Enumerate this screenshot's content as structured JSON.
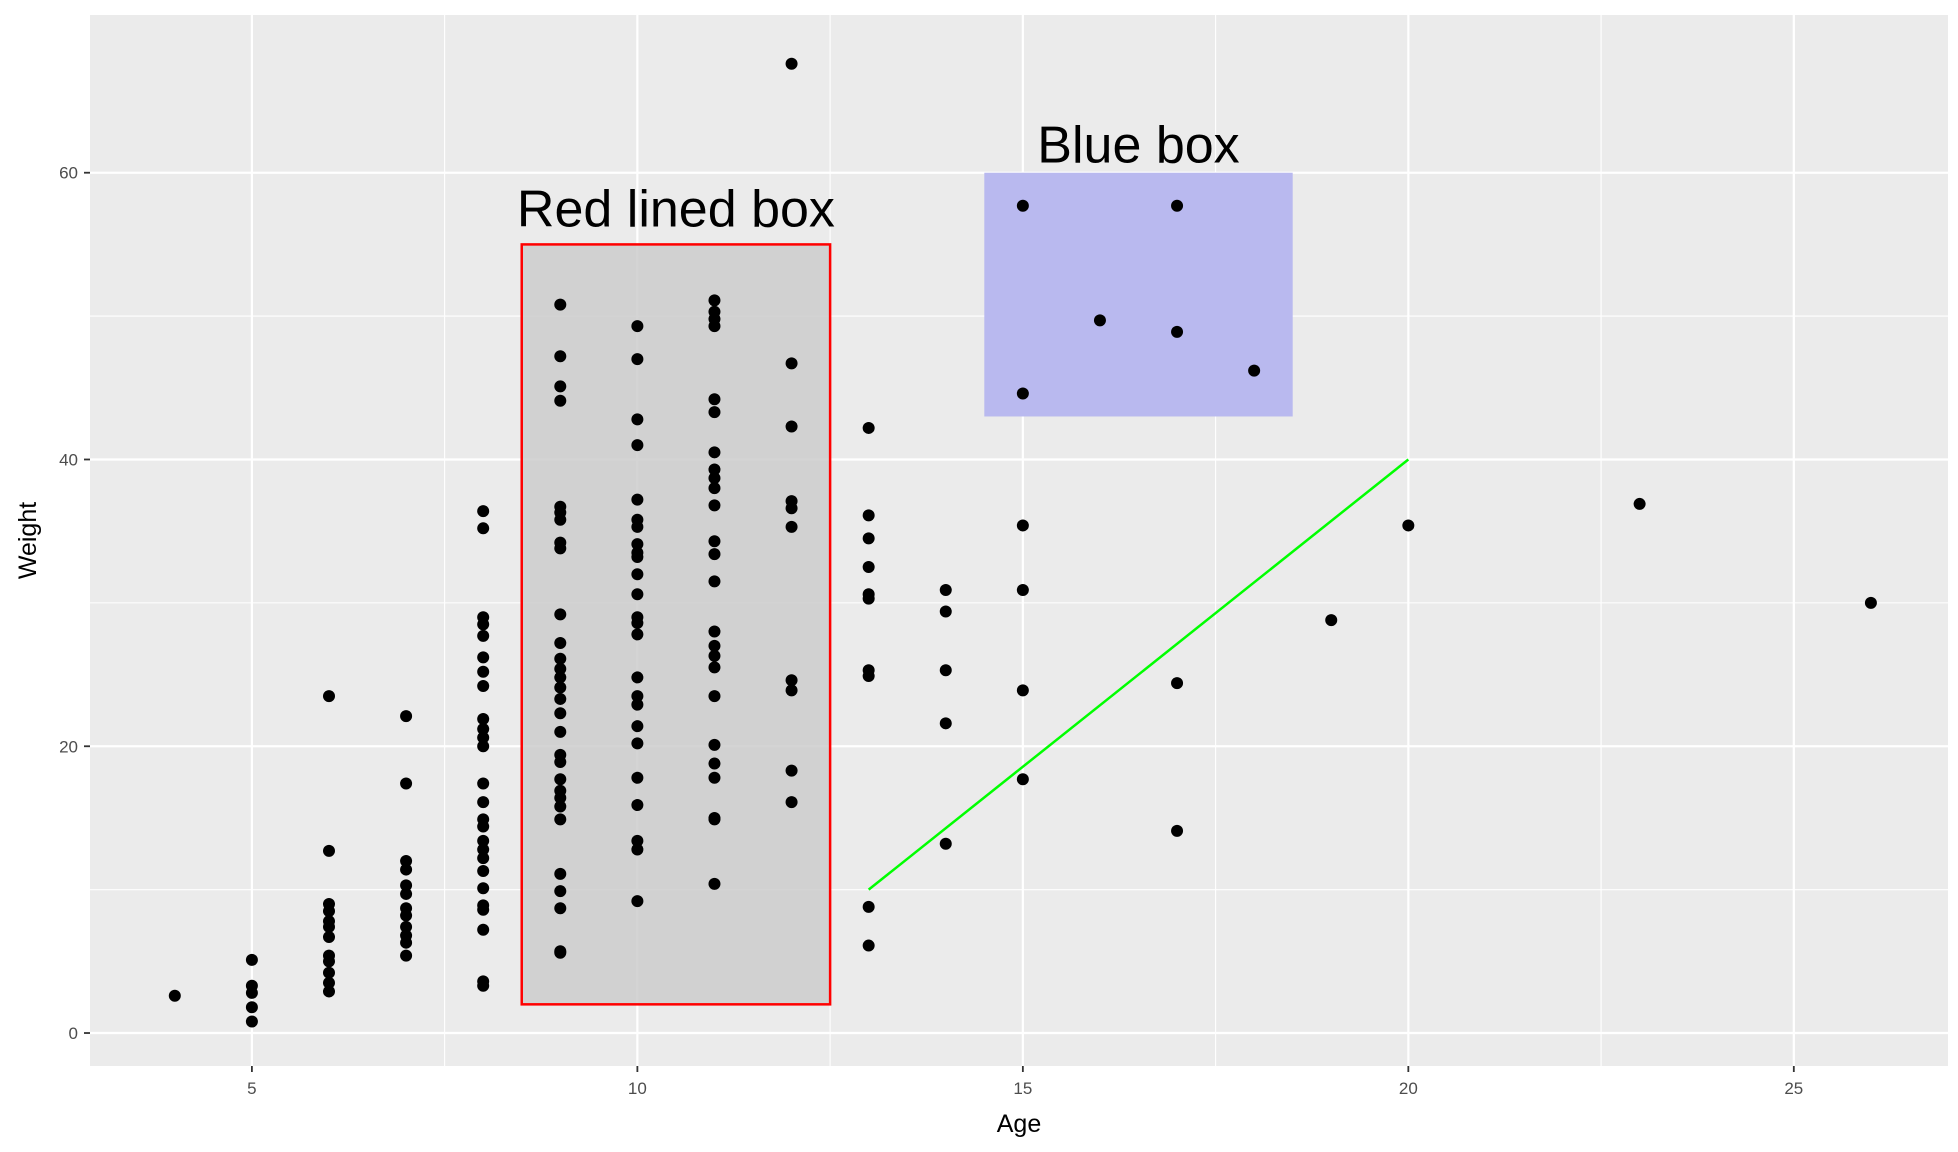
{
  "chart_data": {
    "type": "scatter",
    "title": "",
    "xlabel": "Age",
    "ylabel": "Weight",
    "xlim": [
      2.9,
      27.0
    ],
    "ylim": [
      -2.3,
      71.0
    ],
    "x_ticks": [
      5,
      10,
      15,
      20,
      25
    ],
    "y_ticks": [
      0,
      20,
      40,
      60
    ],
    "grid": true,
    "legend": "none",
    "colors": {
      "panel": "#ebebeb",
      "grid": "#ffffff",
      "points": "#000000",
      "red_box_fill": "#cccccc",
      "red_box_border": "#ff0000",
      "blue_box_fill": "#b9b9ef",
      "line": "#00ff00"
    },
    "points": [
      [
        4,
        2.6
      ],
      [
        5,
        0.8
      ],
      [
        5,
        1.8
      ],
      [
        5,
        2.8
      ],
      [
        5,
        3.3
      ],
      [
        5,
        5.1
      ],
      [
        6,
        2.9
      ],
      [
        6,
        3.5
      ],
      [
        6,
        4.2
      ],
      [
        6,
        5.0
      ],
      [
        6,
        5.4
      ],
      [
        6,
        6.7
      ],
      [
        6,
        7.4
      ],
      [
        6,
        7.8
      ],
      [
        6,
        8.5
      ],
      [
        6,
        9.0
      ],
      [
        6,
        12.7
      ],
      [
        6,
        23.5
      ],
      [
        7,
        5.4
      ],
      [
        7,
        6.3
      ],
      [
        7,
        6.8
      ],
      [
        7,
        7.4
      ],
      [
        7,
        8.2
      ],
      [
        7,
        8.7
      ],
      [
        7,
        9.7
      ],
      [
        7,
        10.3
      ],
      [
        7,
        11.4
      ],
      [
        7,
        12.0
      ],
      [
        7,
        17.4
      ],
      [
        7,
        22.1
      ],
      [
        8,
        3.3
      ],
      [
        8,
        3.6
      ],
      [
        8,
        7.2
      ],
      [
        8,
        8.6
      ],
      [
        8,
        8.9
      ],
      [
        8,
        10.1
      ],
      [
        8,
        11.3
      ],
      [
        8,
        12.2
      ],
      [
        8,
        12.8
      ],
      [
        8,
        13.4
      ],
      [
        8,
        14.4
      ],
      [
        8,
        14.9
      ],
      [
        8,
        16.1
      ],
      [
        8,
        17.4
      ],
      [
        8,
        20.0
      ],
      [
        8,
        20.6
      ],
      [
        8,
        21.2
      ],
      [
        8,
        21.9
      ],
      [
        8,
        24.2
      ],
      [
        8,
        25.2
      ],
      [
        8,
        26.2
      ],
      [
        8,
        27.7
      ],
      [
        8,
        28.5
      ],
      [
        8,
        29.0
      ],
      [
        8,
        35.2
      ],
      [
        8,
        36.4
      ],
      [
        9,
        5.6
      ],
      [
        9,
        5.7
      ],
      [
        9,
        8.7
      ],
      [
        9,
        9.9
      ],
      [
        9,
        11.1
      ],
      [
        9,
        14.9
      ],
      [
        9,
        15.8
      ],
      [
        9,
        16.4
      ],
      [
        9,
        16.9
      ],
      [
        9,
        17.7
      ],
      [
        9,
        18.9
      ],
      [
        9,
        19.4
      ],
      [
        9,
        21.0
      ],
      [
        9,
        22.3
      ],
      [
        9,
        23.3
      ],
      [
        9,
        24.1
      ],
      [
        9,
        24.8
      ],
      [
        9,
        25.4
      ],
      [
        9,
        26.1
      ],
      [
        9,
        27.2
      ],
      [
        9,
        29.2
      ],
      [
        9,
        33.8
      ],
      [
        9,
        34.2
      ],
      [
        9,
        35.8
      ],
      [
        9,
        36.3
      ],
      [
        9,
        36.7
      ],
      [
        9,
        44.1
      ],
      [
        9,
        45.1
      ],
      [
        9,
        47.2
      ],
      [
        9,
        50.8
      ],
      [
        10,
        9.2
      ],
      [
        10,
        12.8
      ],
      [
        10,
        13.4
      ],
      [
        10,
        15.9
      ],
      [
        10,
        17.8
      ],
      [
        10,
        20.2
      ],
      [
        10,
        21.4
      ],
      [
        10,
        22.9
      ],
      [
        10,
        23.5
      ],
      [
        10,
        24.8
      ],
      [
        10,
        27.8
      ],
      [
        10,
        28.6
      ],
      [
        10,
        29.0
      ],
      [
        10,
        30.6
      ],
      [
        10,
        32.0
      ],
      [
        10,
        33.2
      ],
      [
        10,
        33.5
      ],
      [
        10,
        34.1
      ],
      [
        10,
        35.3
      ],
      [
        10,
        35.8
      ],
      [
        10,
        37.2
      ],
      [
        10,
        41.0
      ],
      [
        10,
        42.8
      ],
      [
        10,
        47.0
      ],
      [
        10,
        49.3
      ],
      [
        11,
        10.4
      ],
      [
        11,
        14.9
      ],
      [
        11,
        15.0
      ],
      [
        11,
        17.8
      ],
      [
        11,
        18.8
      ],
      [
        11,
        20.1
      ],
      [
        11,
        23.5
      ],
      [
        11,
        25.5
      ],
      [
        11,
        26.3
      ],
      [
        11,
        27.0
      ],
      [
        11,
        28.0
      ],
      [
        11,
        31.5
      ],
      [
        11,
        33.4
      ],
      [
        11,
        34.3
      ],
      [
        11,
        36.8
      ],
      [
        11,
        38.0
      ],
      [
        11,
        38.7
      ],
      [
        11,
        39.3
      ],
      [
        11,
        40.5
      ],
      [
        11,
        43.3
      ],
      [
        11,
        44.2
      ],
      [
        11,
        49.3
      ],
      [
        11,
        49.8
      ],
      [
        11,
        50.3
      ],
      [
        11,
        51.1
      ],
      [
        12,
        16.1
      ],
      [
        12,
        18.3
      ],
      [
        12,
        23.9
      ],
      [
        12,
        24.6
      ],
      [
        12,
        35.3
      ],
      [
        12,
        36.6
      ],
      [
        12,
        37.1
      ],
      [
        12,
        42.3
      ],
      [
        12,
        46.7
      ],
      [
        12,
        67.6
      ],
      [
        13,
        6.1
      ],
      [
        13,
        8.8
      ],
      [
        13,
        24.9
      ],
      [
        13,
        25.3
      ],
      [
        13,
        30.3
      ],
      [
        13,
        30.6
      ],
      [
        13,
        32.5
      ],
      [
        13,
        34.5
      ],
      [
        13,
        36.1
      ],
      [
        13,
        42.2
      ],
      [
        14,
        13.2
      ],
      [
        14,
        21.6
      ],
      [
        14,
        25.3
      ],
      [
        14,
        29.4
      ],
      [
        14,
        30.9
      ],
      [
        15,
        17.7
      ],
      [
        15,
        23.9
      ],
      [
        15,
        30.9
      ],
      [
        15,
        35.4
      ],
      [
        15,
        44.6
      ],
      [
        15,
        57.7
      ],
      [
        16,
        49.7
      ],
      [
        17,
        14.1
      ],
      [
        17,
        24.4
      ],
      [
        17,
        48.9
      ],
      [
        17,
        57.7
      ],
      [
        18,
        46.2
      ],
      [
        19,
        28.8
      ],
      [
        20,
        35.4
      ],
      [
        23,
        36.9
      ],
      [
        26,
        30.0
      ]
    ],
    "annotations": {
      "red_box": {
        "label": "Red lined box",
        "xmin": 8.5,
        "xmax": 12.5,
        "ymin": 2,
        "ymax": 55
      },
      "blue_box": {
        "label": "Blue box",
        "xmin": 14.5,
        "xmax": 18.5,
        "ymin": 43,
        "ymax": 60
      },
      "line": {
        "x1": 13,
        "y1": 10,
        "x2": 20,
        "y2": 40
      }
    }
  }
}
